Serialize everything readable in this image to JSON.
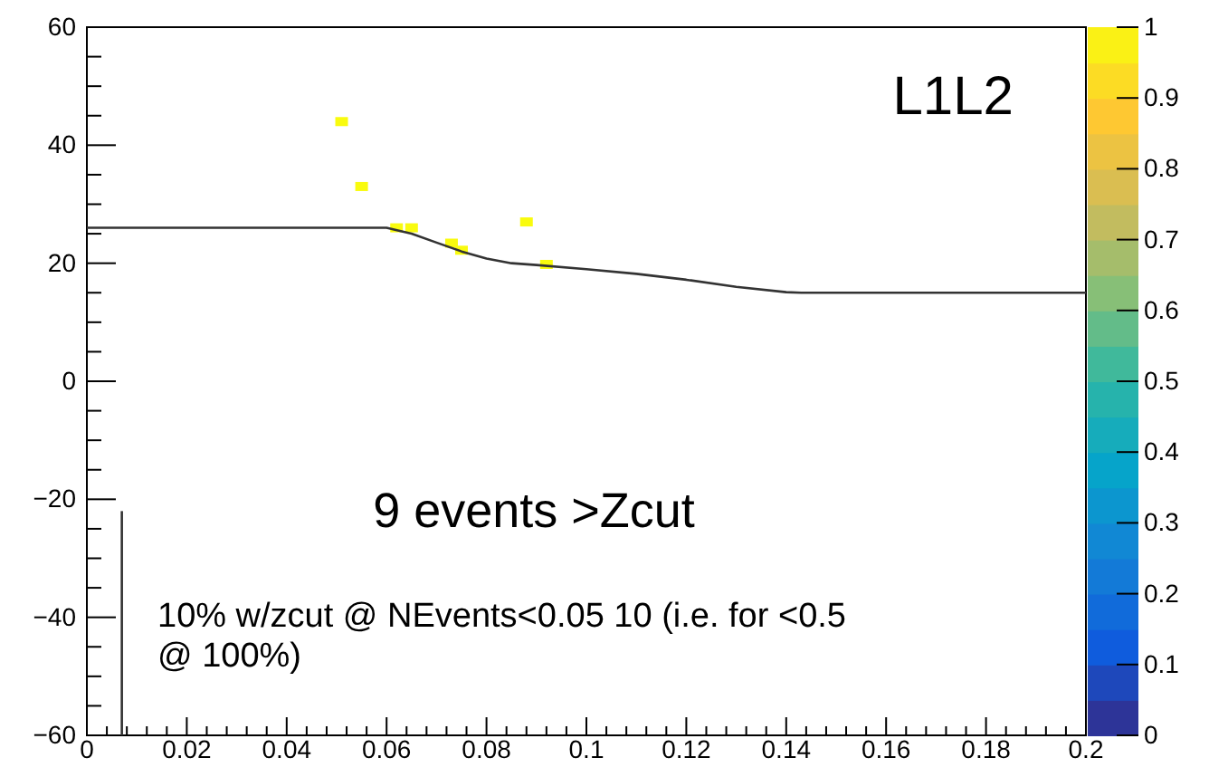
{
  "chart_data": {
    "type": "scatter",
    "marker": "square",
    "grid": false,
    "xlim": [
      0,
      0.2
    ],
    "xticks": [
      0,
      0.02,
      0.04,
      0.06,
      0.08,
      0.1,
      0.12,
      0.14,
      0.16,
      0.18,
      0.2
    ],
    "ylim": [
      -60,
      60
    ],
    "yticks": [
      {
        "value": -60,
        "label": "−60"
      },
      {
        "value": -40,
        "label": "−40"
      },
      {
        "value": -20,
        "label": "−20"
      },
      0,
      20,
      40,
      60
    ],
    "clim": [
      0,
      1
    ],
    "cticks": [
      0,
      0.1,
      0.2,
      0.3,
      0.4,
      0.5,
      0.6,
      0.7,
      0.8,
      0.9,
      1
    ],
    "series": [
      {
        "x": [
          0.051,
          0.055,
          0.062,
          0.065,
          0.073,
          0.075,
          0.088,
          0.092
        ],
        "values": [
          44,
          33,
          26,
          26,
          23.4,
          22.2,
          27,
          19.8
        ],
        "cvalues": [
          1,
          1,
          1,
          1,
          1,
          1,
          1,
          1
        ]
      },
      {
        "type": "line",
        "marker": "none",
        "color": "#333333",
        "x": [
          0,
          0.06,
          0.065,
          0.07,
          0.075,
          0.08,
          0.085,
          0.09,
          0.1,
          0.11,
          0.12,
          0.13,
          0.14,
          0.143,
          0.2
        ],
        "values": [
          26,
          26,
          25,
          23.5,
          22,
          20.8,
          20,
          19.7,
          19,
          18.2,
          17.2,
          16,
          15.1,
          15,
          15
        ]
      },
      {
        "type": "line",
        "marker": "none",
        "color": "#333333",
        "x": [
          0.007,
          0.007
        ],
        "values": [
          -22,
          -60
        ]
      }
    ],
    "annotations": [
      {
        "text": "L1L2"
      },
      {
        "text": "9 events >Zcut"
      },
      {
        "text": "10% w/zcut @ NEvents<0.05 10 (i.e. for <0.5 @ 100%)"
      }
    ]
  }
}
